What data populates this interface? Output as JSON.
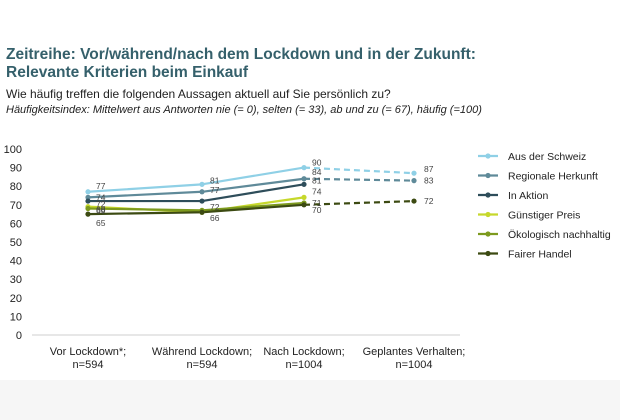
{
  "header": {
    "title_line1": "Zeitreihe: Vor/während/nach dem Lockdown und in der Zukunft:",
    "title_line2": "Relevante Kriterien beim Einkauf",
    "subtitle": "Wie häufig treffen die folgenden Aussagen aktuell auf Sie persönlich zu?",
    "note": "Häufigkeitsindex: Mittelwert aus Antworten nie (= 0), selten (= 33), ab und zu (= 67), häufig (=100)"
  },
  "chart_data": {
    "type": "line",
    "title": "",
    "xlabel": "",
    "ylabel": "",
    "ylim": [
      0,
      100
    ],
    "yticks": [
      0,
      10,
      20,
      30,
      40,
      50,
      60,
      70,
      80,
      90,
      100
    ],
    "grid": false,
    "legend_position": "right",
    "categories": [
      [
        "Vor Lockdown*;",
        "n=594"
      ],
      [
        "Während Lockdown;",
        "n=594"
      ],
      [
        "Nach Lockdown;",
        "n=1004"
      ],
      [
        "Geplantes Verhalten;",
        "n=1004"
      ]
    ],
    "projection_note": "last segment dashed (planned behaviour)",
    "series": [
      {
        "name": "Aus der Schweiz",
        "color": "#8fd0e6",
        "values": [
          77,
          81,
          90,
          87
        ],
        "labels": [
          "77",
          "81",
          "90",
          "87"
        ]
      },
      {
        "name": "Regionale Herkunft",
        "color": "#5f8a99",
        "values": [
          74,
          77,
          84,
          83
        ],
        "labels": [
          "74",
          "77",
          "84",
          "83"
        ]
      },
      {
        "name": "In Aktion",
        "color": "#2e4d5a",
        "values": [
          72,
          72,
          81,
          null
        ],
        "labels": [
          "72",
          "72",
          "81",
          ""
        ]
      },
      {
        "name": "Günstiger Preis",
        "color": "#c6d82c",
        "values": [
          69,
          66,
          74,
          null
        ],
        "labels": [
          "69",
          "",
          "74",
          ""
        ]
      },
      {
        "name": "Ökologisch nachhaltig",
        "color": "#7d9a1e",
        "values": [
          68,
          67,
          71,
          null
        ],
        "labels": [
          "68",
          "",
          "71",
          ""
        ]
      },
      {
        "name": "Fairer Handel",
        "color": "#3c4a12",
        "values": [
          65,
          66,
          70,
          72
        ],
        "labels": [
          "65",
          "66",
          "70",
          "72"
        ]
      }
    ]
  }
}
